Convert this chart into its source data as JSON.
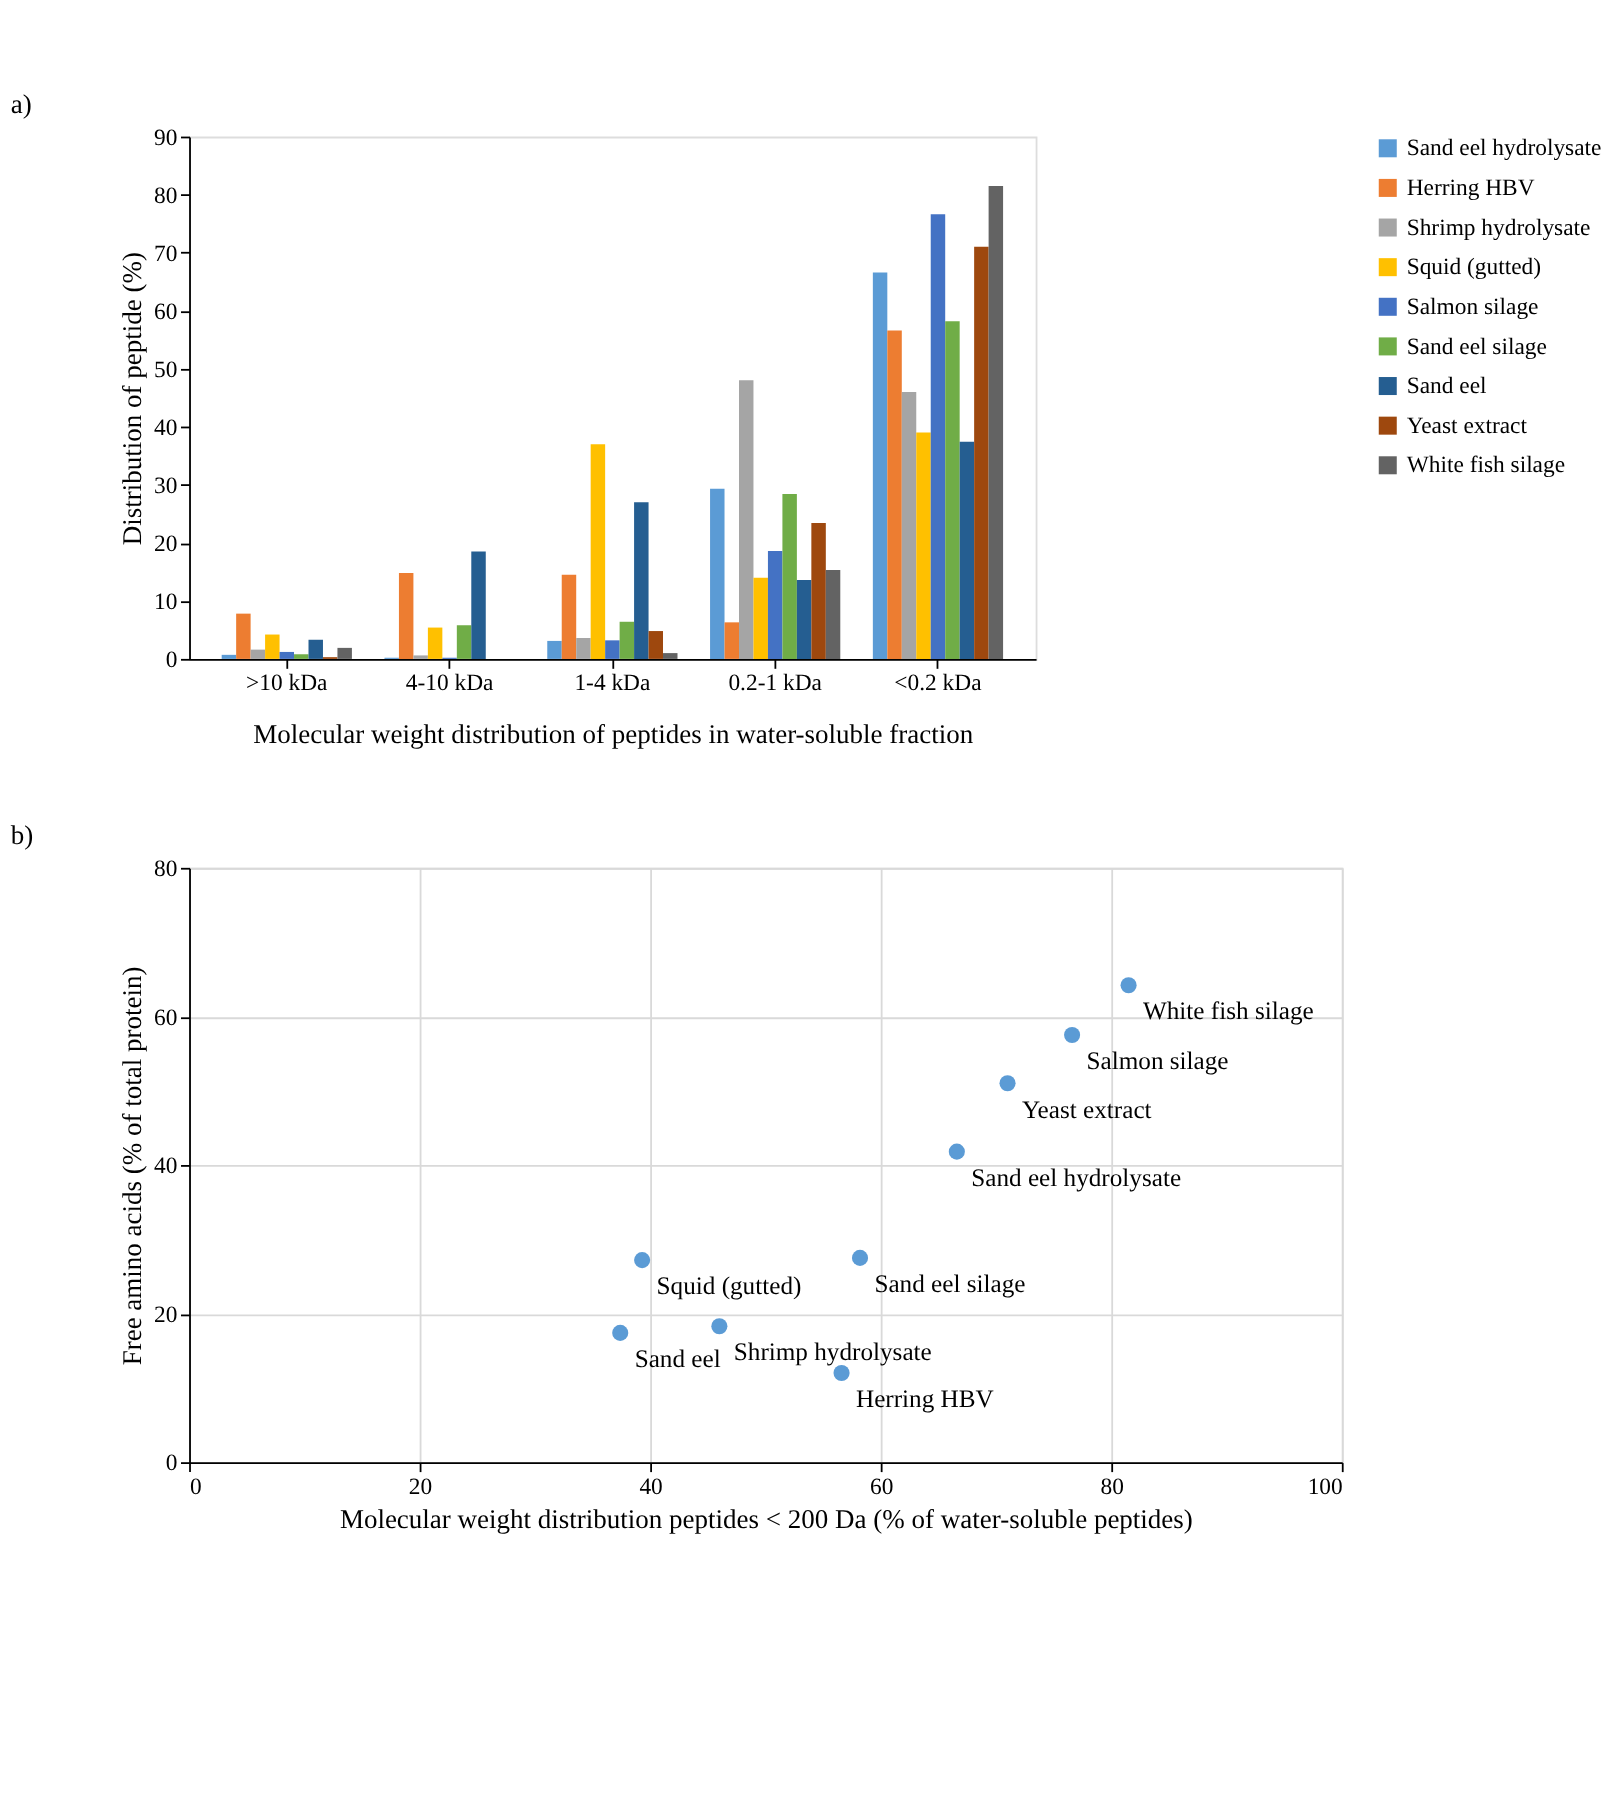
{
  "chart_data": [
    {
      "type": "bar",
      "title": "a)",
      "xlabel": "Molecular weight distribution of peptides in water-soluble fraction",
      "ylabel": "Distribution of peptide (%)",
      "categories": [
        ">10 kDa",
        "4-10 kDa",
        "1-4 kDa",
        "0.2-1 kDa",
        "<0.2 kDa"
      ],
      "series": [
        {
          "name": "Sand eel hydrolysate",
          "color": "#5b9bd5",
          "values": [
            0.7,
            0.2,
            3.1,
            29.3,
            66.6
          ]
        },
        {
          "name": "Herring HBV",
          "color": "#ed7d31",
          "values": [
            7.8,
            14.8,
            14.5,
            6.3,
            56.6
          ]
        },
        {
          "name": "Shrimp hydrolysate",
          "color": "#a5a5a5",
          "values": [
            1.6,
            0.6,
            3.6,
            48,
            46
          ]
        },
        {
          "name": "Squid (gutted)",
          "color": "#ffc000",
          "values": [
            4.2,
            5.4,
            37,
            14,
            39
          ]
        },
        {
          "name": "Salmon silage",
          "color": "#4472c4",
          "values": [
            1.2,
            0.2,
            3.2,
            18.6,
            76.6
          ]
        },
        {
          "name": "Sand eel silage",
          "color": "#70ad47",
          "values": [
            0.8,
            5.8,
            6.4,
            28.4,
            58.2
          ]
        },
        {
          "name": "Sand eel",
          "color": "#255e91",
          "values": [
            3.3,
            18.5,
            27,
            13.6,
            37.4
          ]
        },
        {
          "name": "Yeast extract",
          "color": "#9e480e",
          "values": [
            0.3,
            null,
            4.8,
            23.4,
            71
          ]
        },
        {
          "name": "White fish silage",
          "color": "#636363",
          "values": [
            1.9,
            null,
            1,
            15.3,
            81.5
          ]
        }
      ],
      "ylim": [
        0,
        90
      ],
      "yticks": [
        0,
        10,
        20,
        30,
        40,
        50,
        60,
        70,
        80,
        90
      ],
      "grid": false,
      "legend": "right"
    },
    {
      "type": "scatter",
      "title": "b)",
      "xlabel": "Molecular weight distribution peptides < 200 Da (% of water-soluble peptides)",
      "ylabel": "Free amino acids (% of total protein)",
      "series": [
        {
          "color": "#5b9bd5",
          "x": [
            66.6,
            56.6,
            46,
            39.3,
            76.6,
            58.2,
            37.4,
            71,
            81.5
          ],
          "values": [
            41.8,
            12,
            18.3,
            27.2,
            57.5,
            27.5,
            17.4,
            51,
            64.2
          ]
        }
      ],
      "annotations": [
        {
          "text": "Sand eel hydrolysate",
          "x": 66.6,
          "y": 41.8
        },
        {
          "text": "Herring HBV",
          "x": 56.6,
          "y": 12
        },
        {
          "text": "Shrimp hydrolysate",
          "x": 46,
          "y": 18.3
        },
        {
          "text": "Squid (gutted)",
          "x": 39.3,
          "y": 27.2
        },
        {
          "text": "Salmon silage",
          "x": 76.6,
          "y": 57.5
        },
        {
          "text": "Sand eel silage",
          "x": 58.2,
          "y": 27.5
        },
        {
          "text": "Sand eel",
          "x": 37.4,
          "y": 17.4
        },
        {
          "text": "Yeast extract",
          "x": 71,
          "y": 51
        },
        {
          "text": "White fish silage",
          "x": 81.5,
          "y": 64.2
        }
      ],
      "xlim": [
        0,
        100
      ],
      "xticks": [
        0,
        20,
        40,
        60,
        80,
        100
      ],
      "ylim": [
        0,
        80
      ],
      "yticks": [
        0,
        20,
        40,
        60,
        80
      ],
      "grid": true,
      "marker": "circle"
    }
  ]
}
